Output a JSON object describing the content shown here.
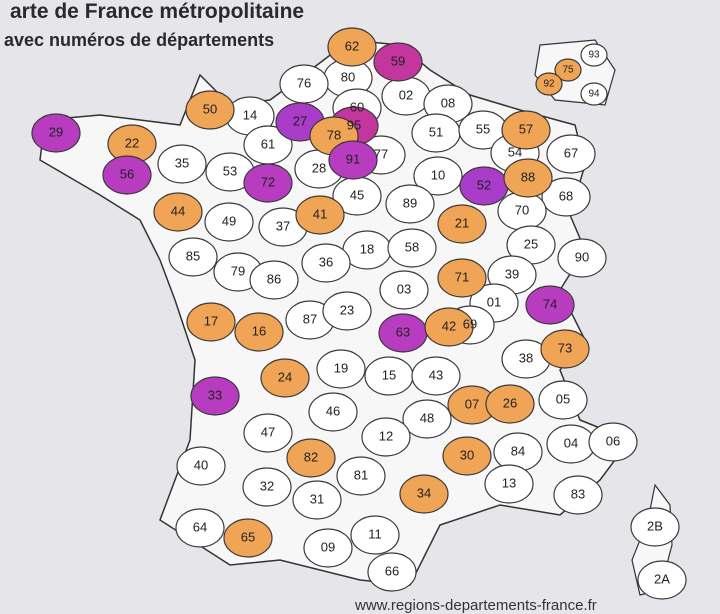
{
  "header": {
    "title": "arte de France métropolitaine",
    "subtitle": "avec numéros de départements"
  },
  "footer": {
    "url": "www.regions-departements-france.fr"
  },
  "departments": [
    {
      "label": "62",
      "color": "#f0a455"
    },
    {
      "label": "59",
      "color": "#c2369e"
    },
    {
      "label": "80",
      "color": "#ffffff"
    },
    {
      "label": "76",
      "color": "#ffffff"
    },
    {
      "label": "02",
      "color": "#ffffff"
    },
    {
      "label": "08",
      "color": "#ffffff"
    },
    {
      "label": "60",
      "color": "#ffffff"
    },
    {
      "label": "50",
      "color": "#f0a455"
    },
    {
      "label": "14",
      "color": "#ffffff"
    },
    {
      "label": "27",
      "color": "#a93cc8"
    },
    {
      "label": "95",
      "color": "#c2369e"
    },
    {
      "label": "78",
      "color": "#f0a455"
    },
    {
      "label": "51",
      "color": "#ffffff"
    },
    {
      "label": "55",
      "color": "#ffffff"
    },
    {
      "label": "57",
      "color": "#f0a455"
    },
    {
      "label": "29",
      "color": "#b83cc0"
    },
    {
      "label": "22",
      "color": "#f0a455"
    },
    {
      "label": "61",
      "color": "#ffffff"
    },
    {
      "label": "93",
      "color": "#ffffff"
    },
    {
      "label": "75",
      "color": "#f0a455"
    },
    {
      "label": "92",
      "color": "#f0a455"
    },
    {
      "label": "94",
      "color": "#ffffff"
    },
    {
      "label": "91",
      "color": "#b83cc0"
    },
    {
      "label": "77",
      "color": "#ffffff"
    },
    {
      "label": "54",
      "color": "#ffffff"
    },
    {
      "label": "67",
      "color": "#ffffff"
    },
    {
      "label": "35",
      "color": "#ffffff"
    },
    {
      "label": "53",
      "color": "#ffffff"
    },
    {
      "label": "72",
      "color": "#b83cc0"
    },
    {
      "label": "28",
      "color": "#ffffff"
    },
    {
      "label": "10",
      "color": "#ffffff"
    },
    {
      "label": "52",
      "color": "#a93cc8"
    },
    {
      "label": "88",
      "color": "#f0a455"
    },
    {
      "label": "68",
      "color": "#ffffff"
    },
    {
      "label": "56",
      "color": "#b83cc0"
    },
    {
      "label": "45",
      "color": "#ffffff"
    },
    {
      "label": "89",
      "color": "#ffffff"
    },
    {
      "label": "70",
      "color": "#ffffff"
    },
    {
      "label": "44",
      "color": "#f0a455"
    },
    {
      "label": "41",
      "color": "#f0a455"
    },
    {
      "label": "49",
      "color": "#ffffff"
    },
    {
      "label": "37",
      "color": "#ffffff"
    },
    {
      "label": "21",
      "color": "#f0a455"
    },
    {
      "label": "25",
      "color": "#ffffff"
    },
    {
      "label": "90",
      "color": "#ffffff"
    },
    {
      "label": "85",
      "color": "#ffffff"
    },
    {
      "label": "18",
      "color": "#ffffff"
    },
    {
      "label": "58",
      "color": "#ffffff"
    },
    {
      "label": "36",
      "color": "#ffffff"
    },
    {
      "label": "79",
      "color": "#ffffff"
    },
    {
      "label": "86",
      "color": "#ffffff"
    },
    {
      "label": "71",
      "color": "#f0a455"
    },
    {
      "label": "39",
      "color": "#ffffff"
    },
    {
      "label": "03",
      "color": "#ffffff"
    },
    {
      "label": "01",
      "color": "#ffffff"
    },
    {
      "label": "74",
      "color": "#b83cc0"
    },
    {
      "label": "17",
      "color": "#f0a455"
    },
    {
      "label": "16",
      "color": "#f0a455"
    },
    {
      "label": "87",
      "color": "#ffffff"
    },
    {
      "label": "23",
      "color": "#ffffff"
    },
    {
      "label": "63",
      "color": "#b83cc0"
    },
    {
      "label": "42",
      "color": "#f0a455"
    },
    {
      "label": "69",
      "color": "#ffffff"
    },
    {
      "label": "73",
      "color": "#f0a455"
    },
    {
      "label": "38",
      "color": "#ffffff"
    },
    {
      "label": "19",
      "color": "#ffffff"
    },
    {
      "label": "15",
      "color": "#ffffff"
    },
    {
      "label": "43",
      "color": "#ffffff"
    },
    {
      "label": "24",
      "color": "#f0a455"
    },
    {
      "label": "33",
      "color": "#b83cc0"
    },
    {
      "label": "07",
      "color": "#f0a455"
    },
    {
      "label": "26",
      "color": "#f0a455"
    },
    {
      "label": "05",
      "color": "#ffffff"
    },
    {
      "label": "46",
      "color": "#ffffff"
    },
    {
      "label": "48",
      "color": "#ffffff"
    },
    {
      "label": "47",
      "color": "#ffffff"
    },
    {
      "label": "12",
      "color": "#ffffff"
    },
    {
      "label": "04",
      "color": "#ffffff"
    },
    {
      "label": "06",
      "color": "#ffffff"
    },
    {
      "label": "30",
      "color": "#f0a455"
    },
    {
      "label": "84",
      "color": "#ffffff"
    },
    {
      "label": "82",
      "color": "#f0a455"
    },
    {
      "label": "40",
      "color": "#ffffff"
    },
    {
      "label": "81",
      "color": "#ffffff"
    },
    {
      "label": "13",
      "color": "#ffffff"
    },
    {
      "label": "83",
      "color": "#ffffff"
    },
    {
      "label": "32",
      "color": "#ffffff"
    },
    {
      "label": "31",
      "color": "#ffffff"
    },
    {
      "label": "34",
      "color": "#f0a455"
    },
    {
      "label": "64",
      "color": "#ffffff"
    },
    {
      "label": "65",
      "color": "#f0a455"
    },
    {
      "label": "11",
      "color": "#ffffff"
    },
    {
      "label": "09",
      "color": "#ffffff"
    },
    {
      "label": "66",
      "color": "#ffffff"
    },
    {
      "label": "2B",
      "color": "#ffffff"
    },
    {
      "label": "2A",
      "color": "#ffffff"
    }
  ]
}
